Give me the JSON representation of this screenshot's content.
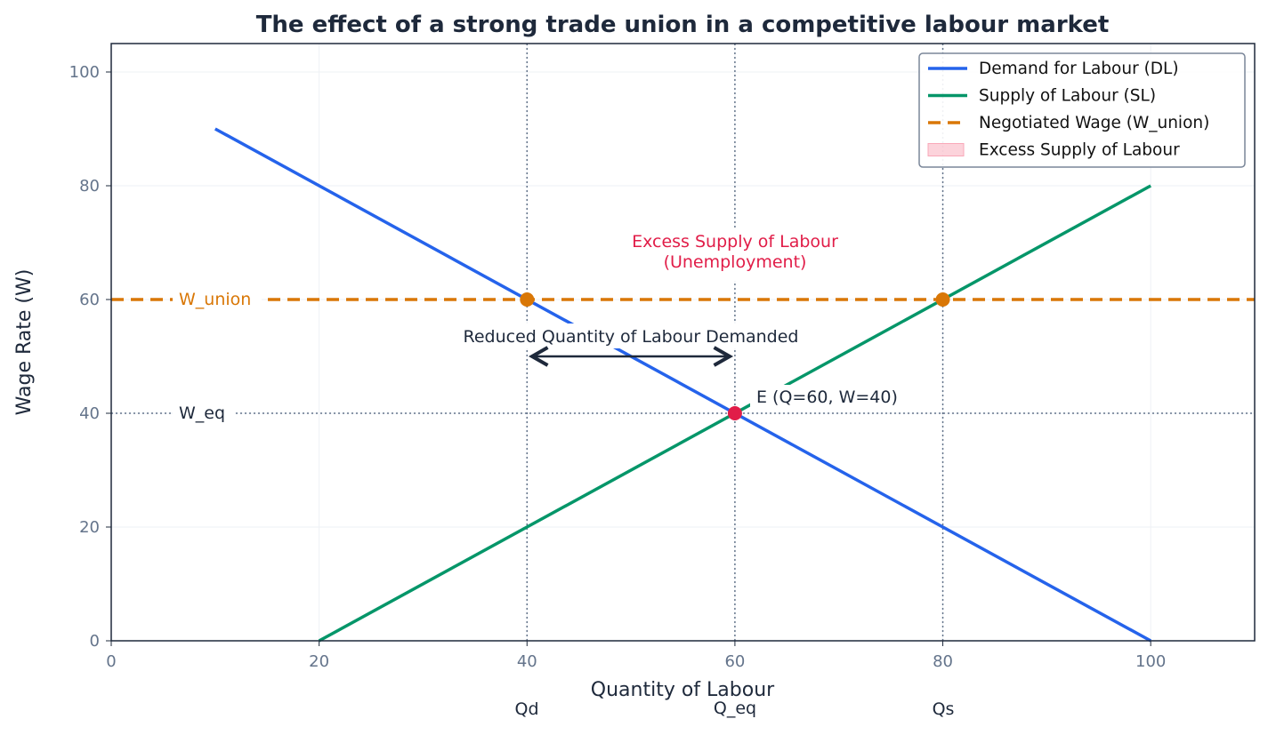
{
  "chart_data": {
    "type": "line",
    "title": "The effect of a strong trade union in a competitive labour market",
    "xlabel": "Quantity of Labour",
    "ylabel": "Wage Rate (W)",
    "xlim": [
      0,
      110
    ],
    "ylim": [
      0,
      105
    ],
    "xticks": [
      0,
      20,
      40,
      60,
      80,
      100
    ],
    "yticks": [
      0,
      20,
      40,
      60,
      80,
      100
    ],
    "grid": true,
    "legend_position": "top-right",
    "series": [
      {
        "name": "Demand for Labour (DL)",
        "color": "#2563eb",
        "style": "solid",
        "x": [
          10,
          100
        ],
        "y": [
          90,
          0
        ]
      },
      {
        "name": "Supply of Labour (SL)",
        "color": "#059669",
        "style": "solid",
        "x": [
          20,
          100
        ],
        "y": [
          0,
          80
        ]
      },
      {
        "name": "Negotiated Wage (W_union)",
        "color": "#d97706",
        "style": "dashed",
        "y_const": 60
      },
      {
        "name": "Excess Supply of Labour",
        "color": "#f9a8b8",
        "style": "fill"
      }
    ],
    "points": [
      {
        "x": 40,
        "y": 60,
        "color": "#d97706"
      },
      {
        "x": 80,
        "y": 60,
        "color": "#d97706"
      },
      {
        "x": 60,
        "y": 40,
        "color": "#e11d48"
      }
    ],
    "ref_lines": {
      "vertical": [
        40,
        60,
        80
      ],
      "horizontal": [
        40
      ]
    },
    "annotations": {
      "w_union": "W_union",
      "w_eq": "W_eq",
      "excess_line1": "Excess Supply of Labour",
      "excess_line2": "(Unemployment)",
      "reduced": "Reduced Quantity of Labour Demanded",
      "equilibrium": "E (Q=60, W=40)",
      "qd": "Qd",
      "q_eq": "Q_eq",
      "qs": "Qs"
    }
  }
}
